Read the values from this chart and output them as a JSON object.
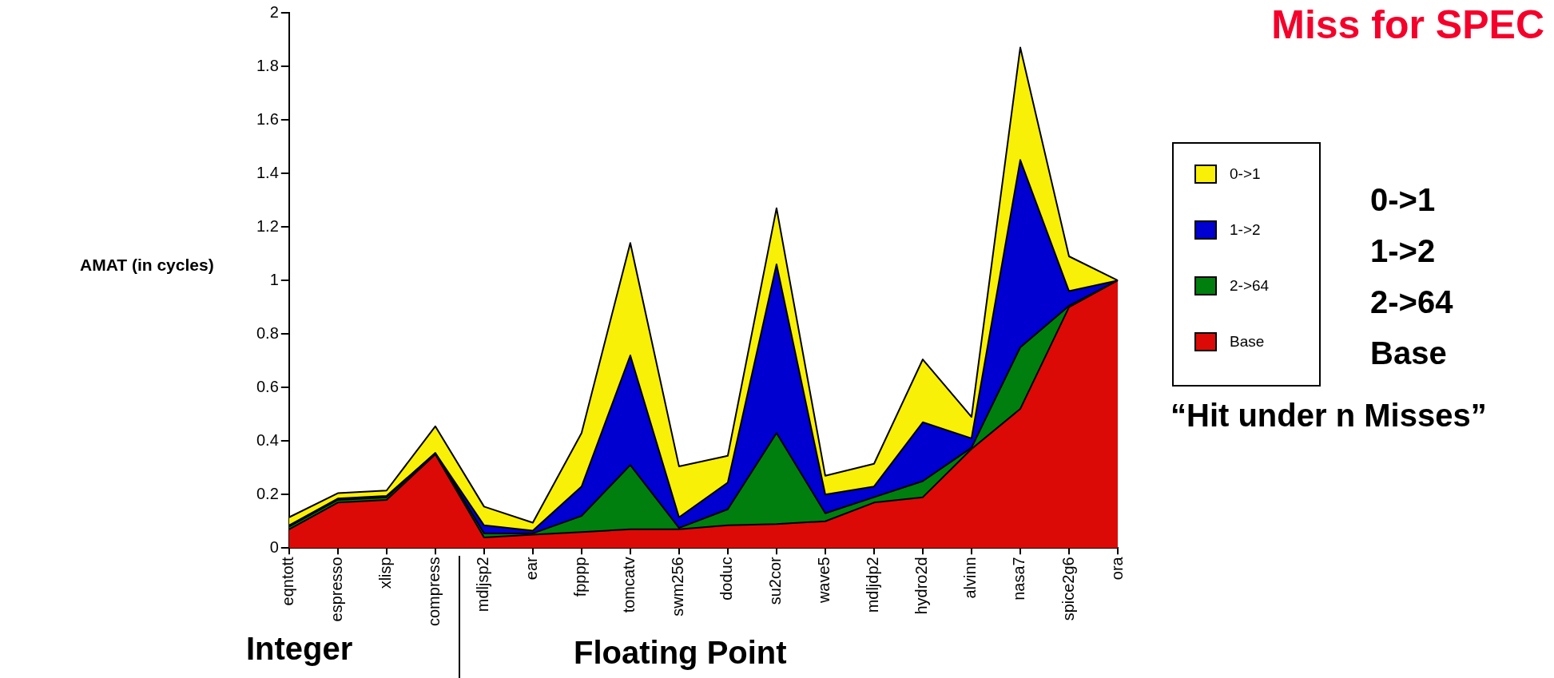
{
  "chart_data": {
    "type": "area",
    "title": "Miss for SPEC",
    "ylabel": "AMAT (in cycles)",
    "categories": [
      "eqntott",
      "espresso",
      "xlisp",
      "compress",
      "mdljsp2",
      "ear",
      "fpppp",
      "tomcatv",
      "swm256",
      "doduc",
      "su2cor",
      "wave5",
      "mdljdp2",
      "hydro2d",
      "alvinn",
      "nasa7",
      "spice2g6",
      "ora"
    ],
    "stacked": true,
    "series": [
      {
        "name": "Base",
        "color": "#dc0a06",
        "values": [
          0.07,
          0.17,
          0.18,
          0.35,
          0.04,
          0.05,
          0.06,
          0.07,
          0.07,
          0.085,
          0.09,
          0.1,
          0.17,
          0.19,
          0.37,
          0.52,
          0.9,
          1.0
        ]
      },
      {
        "name": "2->64",
        "color": "#007f0e",
        "values": [
          0.01,
          0.01,
          0.01,
          0.005,
          0.015,
          0.005,
          0.06,
          0.24,
          0.005,
          0.06,
          0.34,
          0.03,
          0.02,
          0.06,
          0.005,
          0.23,
          0.005,
          0
        ]
      },
      {
        "name": "1->2",
        "color": "#0000d0",
        "values": [
          0.005,
          0.005,
          0.005,
          0,
          0.03,
          0.01,
          0.11,
          0.41,
          0.04,
          0.1,
          0.63,
          0.07,
          0.04,
          0.22,
          0.035,
          0.7,
          0.055,
          0
        ]
      },
      {
        "name": "0->1",
        "color": "#f9f007",
        "values": [
          0.03,
          0.02,
          0.02,
          0.1,
          0.07,
          0.03,
          0.2,
          0.42,
          0.19,
          0.1,
          0.21,
          0.07,
          0.085,
          0.235,
          0.08,
          0.42,
          0.13,
          0
        ]
      }
    ],
    "ylim": [
      0,
      2
    ],
    "yticks": [
      0,
      0.2,
      0.4,
      0.6,
      0.8,
      1,
      1.2,
      1.4,
      1.6,
      1.8,
      2
    ],
    "grid": false,
    "legend": "right",
    "marker": "none",
    "line_style": "solid",
    "annotations": [
      "0->1",
      "1->2",
      "2->64",
      "Base",
      "“Hit under n Misses”",
      "Integer",
      "Floating Point"
    ]
  }
}
